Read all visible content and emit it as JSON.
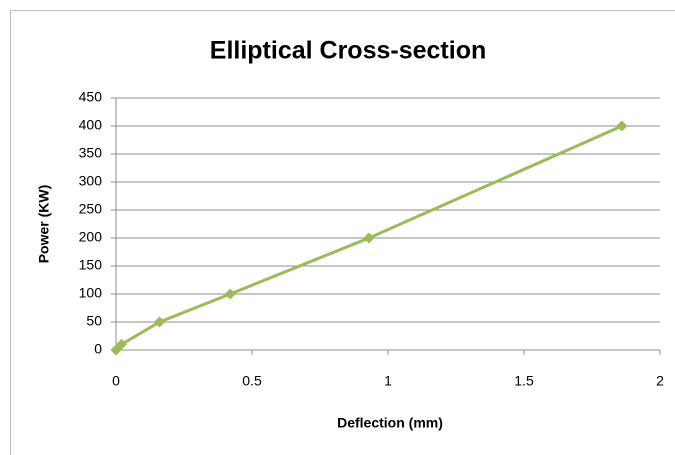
{
  "chart_data": {
    "type": "line",
    "title": "Elliptical Cross-section",
    "x_label": "Deflection (mm)",
    "y_label": "Power (KW)",
    "x": [
      0,
      0.02,
      0.16,
      0.42,
      0.93,
      1.86
    ],
    "series": [
      {
        "name": "Power",
        "color": "#9bbb59",
        "values": [
          0,
          10,
          50,
          100,
          200,
          400
        ]
      }
    ],
    "xlim": [
      0,
      2
    ],
    "xticks": [
      0,
      0.5,
      1,
      1.5,
      2
    ],
    "ylim": [
      0,
      450
    ],
    "yticks": [
      0,
      50,
      100,
      150,
      200,
      250,
      300,
      350,
      400,
      450
    ],
    "grid": true
  }
}
